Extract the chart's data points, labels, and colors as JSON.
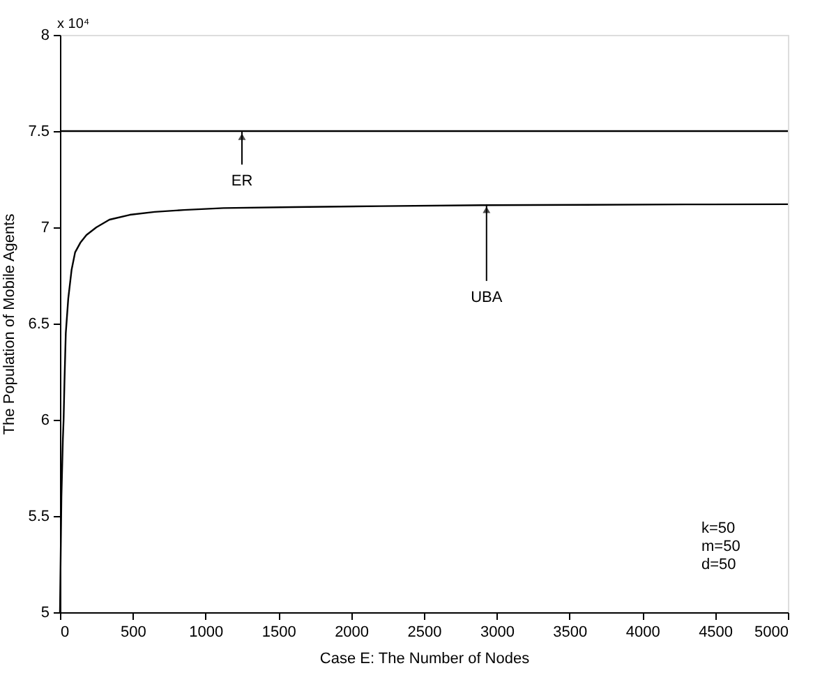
{
  "chart_data": {
    "type": "line",
    "xlabel": "Case E: The Number of Nodes",
    "ylabel": "The Population of Mobile Agents",
    "xlim": [
      0,
      5000
    ],
    "xticks": [
      0,
      500,
      1000,
      1500,
      2000,
      2500,
      3000,
      3500,
      4000,
      4500,
      5000
    ],
    "ylim": [
      5,
      8
    ],
    "yticks": [
      5,
      5.5,
      6,
      6.5,
      7,
      7.5,
      8
    ],
    "grid": false,
    "line_style": "solid",
    "marker": "none",
    "series": [
      {
        "color": "#000000",
        "x": [
          0,
          5000
        ],
        "values": [
          7.5,
          7.5
        ]
      },
      {
        "color": "#000000",
        "x": [
          0,
          10,
          20,
          25,
          31,
          40,
          57,
          80,
          104,
          140,
          182,
          250,
          340,
          480,
          650,
          850,
          1123,
          1600,
          2200,
          2900,
          3600,
          4300,
          5000
        ],
        "values": [
          5.0,
          5.6,
          5.9,
          6.0,
          6.2,
          6.45,
          6.63,
          6.78,
          6.87,
          6.92,
          6.96,
          7.0,
          7.04,
          7.065,
          7.08,
          7.09,
          7.1,
          7.105,
          7.11,
          7.115,
          7.117,
          7.119,
          7.12
        ]
      }
    ],
    "annotations": [
      "x 10⁴",
      {
        "text": "ER",
        "x": 1250,
        "y": 7.5
      },
      {
        "text": "UBA",
        "x": 2930,
        "y": 7.12
      },
      "k=50",
      "m=50",
      "d=50"
    ]
  }
}
